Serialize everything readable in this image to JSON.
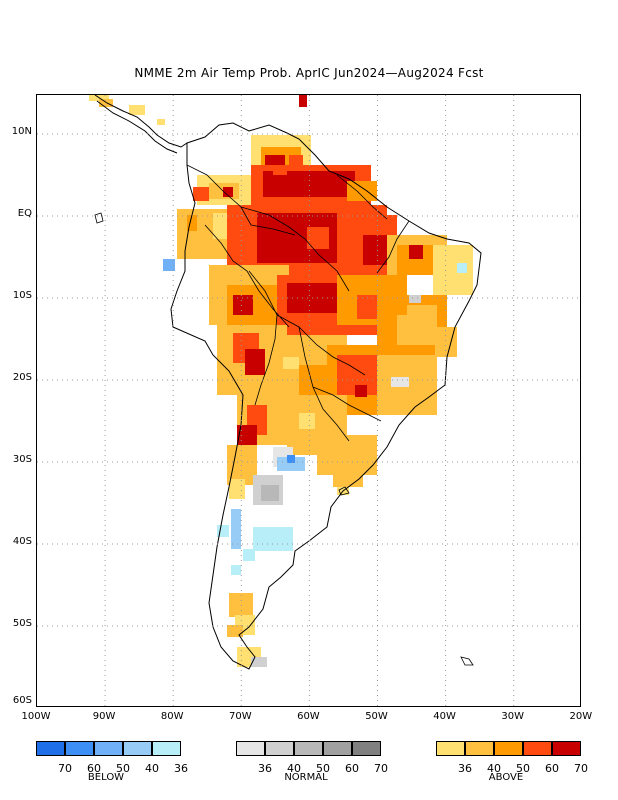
{
  "title": "NMME 2m Air Temp Prob. AprIC  Jun2024—Aug2024 Fcst",
  "lat_labels": [
    "10N",
    "EQ",
    "10S",
    "20S",
    "30S",
    "40S",
    "50S",
    "60S"
  ],
  "lon_labels": [
    "100W",
    "90W",
    "80W",
    "70W",
    "60W",
    "50W",
    "40W",
    "30W",
    "20W"
  ],
  "colors": {
    "below": [
      "#1f6fe8",
      "#3d8ff5",
      "#6fb0f7",
      "#97ccf6",
      "#b8eef8"
    ],
    "normal": [
      "#e6e6e6",
      "#d0d0d0",
      "#b8b8b8",
      "#a0a0a0",
      "#808080"
    ],
    "above": [
      "#ffe070",
      "#ffc040",
      "#ff9a00",
      "#ff4a10",
      "#c80000"
    ]
  },
  "legend": {
    "below": {
      "title": "BELOW",
      "ticks": [
        "70",
        "60",
        "50",
        "40",
        "36"
      ]
    },
    "normal": {
      "title": "NORMAL",
      "ticks": [
        "36",
        "40",
        "50",
        "60",
        "70"
      ]
    },
    "above": {
      "title": "ABOVE",
      "ticks": [
        "36",
        "40",
        "50",
        "60",
        "70"
      ]
    }
  }
}
